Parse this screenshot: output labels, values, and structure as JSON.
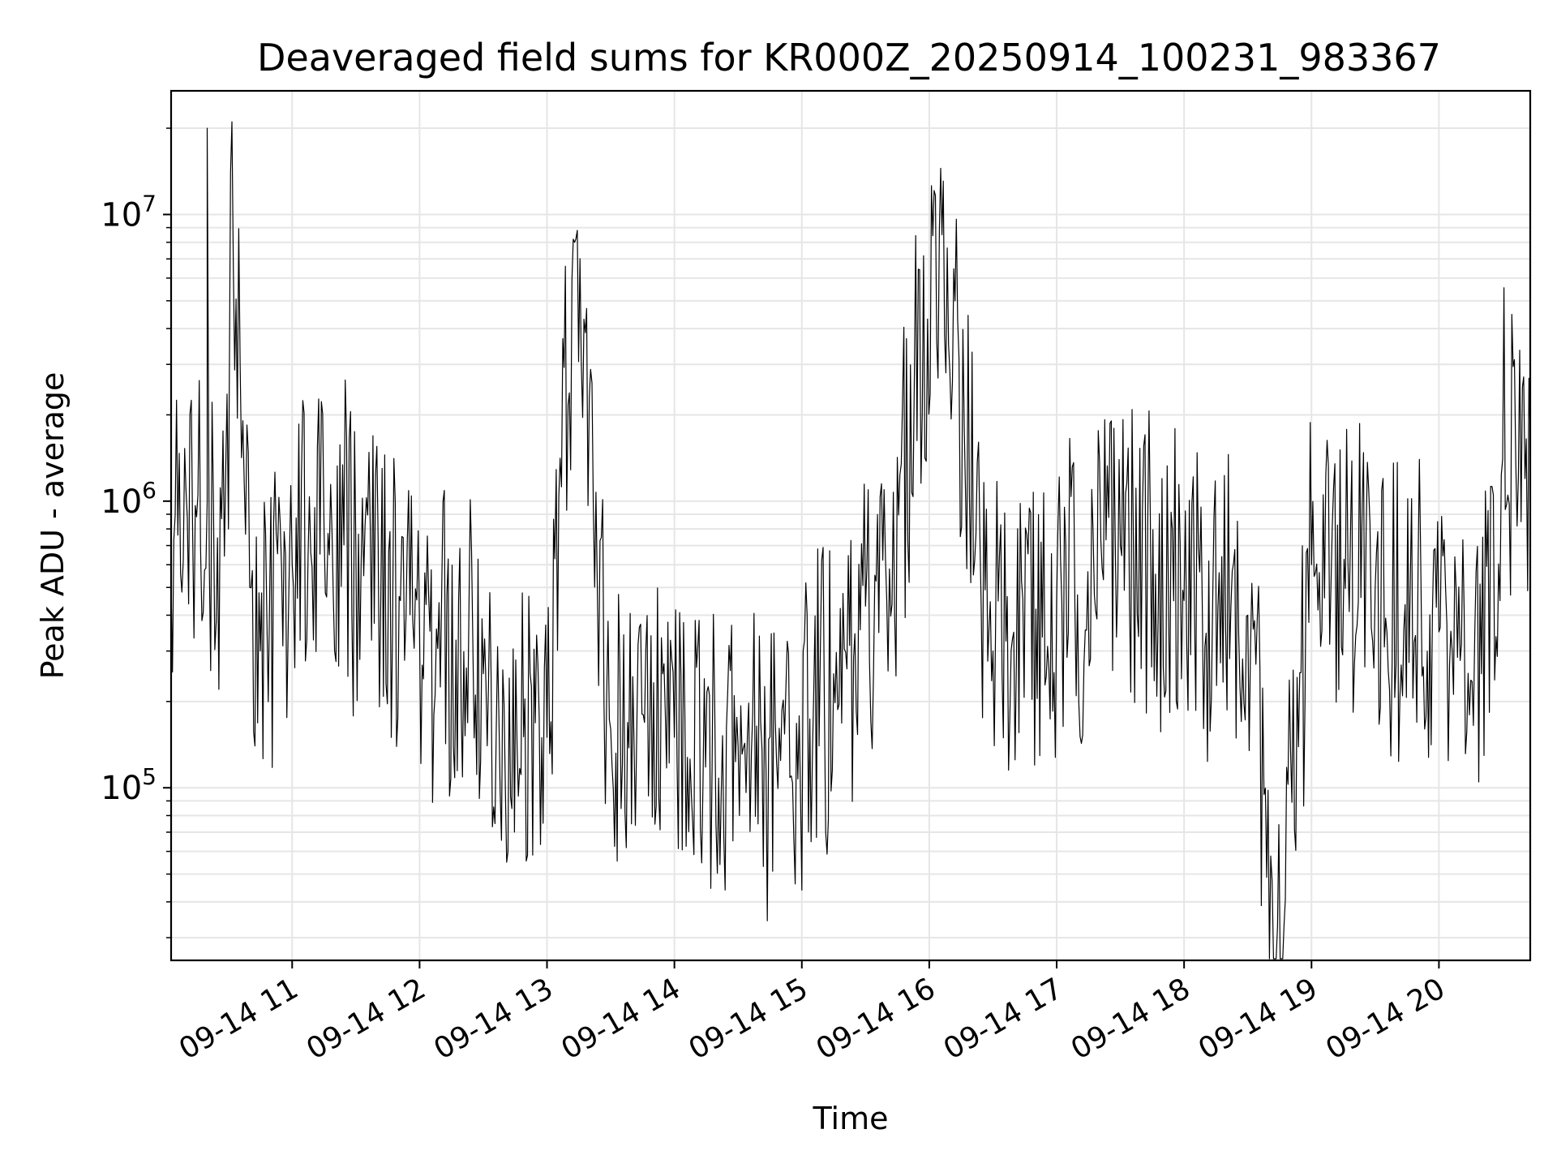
{
  "chart_data": {
    "type": "line",
    "title": "Deaveraged field sums for KR000Z_20250914_100231_983367",
    "xlabel": "Time",
    "ylabel": "Peak ADU - average",
    "yscale": "log",
    "ylim": [
      25000,
      27000000
    ],
    "xlim": [
      "2025-09-14 10:03",
      "2025-09-14 20:43"
    ],
    "x_tick_labels": [
      "09-14 11",
      "09-14 12",
      "09-14 13",
      "09-14 14",
      "09-14 15",
      "09-14 16",
      "09-14 17",
      "09-14 18",
      "09-14 19",
      "09-14 20"
    ],
    "x_tick_times": [
      "2025-09-14 11:00",
      "2025-09-14 12:00",
      "2025-09-14 13:00",
      "2025-09-14 14:00",
      "2025-09-14 15:00",
      "2025-09-14 16:00",
      "2025-09-14 17:00",
      "2025-09-14 18:00",
      "2025-09-14 19:00",
      "2025-09-14 20:00"
    ],
    "y_ticks": [
      {
        "value": 100000,
        "base": "10",
        "exp": "5"
      },
      {
        "value": 1000000,
        "base": "10",
        "exp": "6"
      },
      {
        "value": 10000000,
        "base": "10",
        "exp": "7"
      }
    ],
    "grid": true,
    "legend": "none",
    "line_color": "#000000",
    "series": [
      {
        "x": [
          "2025-09-14 10:03",
          "2025-09-14 10:10",
          "2025-09-14 10:20",
          "2025-09-14 10:20",
          "2025-09-14 10:21",
          "2025-09-14 10:30",
          "2025-09-14 10:31",
          "2025-09-14 10:40",
          "2025-09-14 10:45",
          "2025-09-14 11:00",
          "2025-09-14 11:15",
          "2025-09-14 11:30",
          "2025-09-14 11:51",
          "2025-09-14 12:00",
          "2025-09-14 12:30",
          "2025-09-14 13:00",
          "2025-09-14 13:13",
          "2025-09-14 13:30",
          "2025-09-14 14:00",
          "2025-09-14 14:30",
          "2025-09-14 14:55",
          "2025-09-14 15:15",
          "2025-09-14 15:40",
          "2025-09-14 16:06",
          "2025-09-14 16:30",
          "2025-09-14 17:00",
          "2025-09-14 17:30",
          "2025-09-14 18:00",
          "2025-09-14 18:30",
          "2025-09-14 18:44",
          "2025-09-14 19:00",
          "2025-09-14 19:30",
          "2025-09-14 20:00",
          "2025-09-14 20:20",
          "2025-09-14 20:30",
          "2025-09-14 20:43"
        ],
        "values": [
          500000,
          1100000,
          1000000,
          20000000,
          600000,
          800000,
          14000000,
          500000,
          300000,
          600000,
          800000,
          700000,
          450000,
          350000,
          250000,
          150000,
          8000000,
          160000,
          150000,
          140000,
          110000,
          250000,
          450000,
          8500000,
          300000,
          450000,
          700000,
          450000,
          400000,
          33000,
          600000,
          500000,
          350000,
          250000,
          1400000,
          1700000
        ]
      }
    ]
  }
}
